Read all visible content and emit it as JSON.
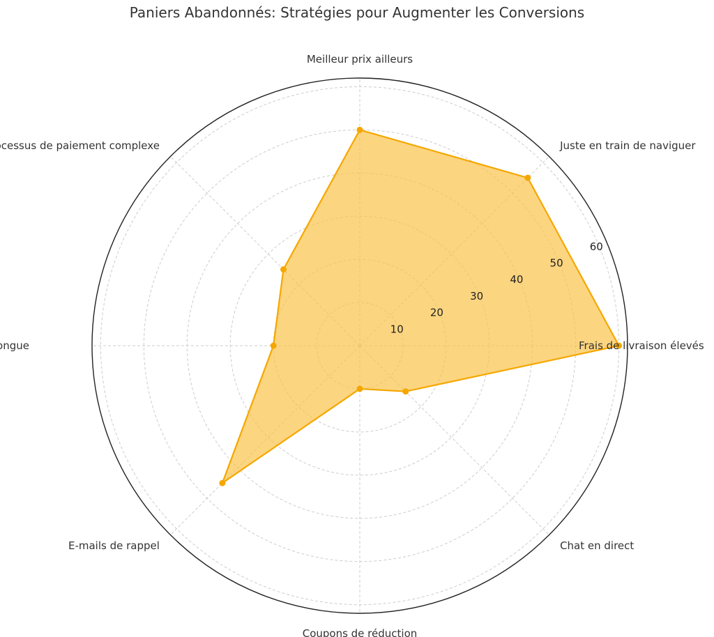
{
  "chart_data": {
    "type": "radar",
    "title": "Paniers Abandonnés: Stratégies pour Augmenter les Conversions",
    "categories": [
      "Frais de livraison élevés",
      "Juste en train de naviguer",
      "Meilleur prix ailleurs",
      "Processus de paiement complexe",
      "Durée de livraison longue",
      "E-mails de rappel",
      "Coupons de réduction",
      "Chat en direct"
    ],
    "series": [
      {
        "values": [
          60,
          55,
          50,
          25,
          20,
          45,
          10,
          15
        ]
      }
    ],
    "radial_ticks": [
      10,
      20,
      30,
      40,
      50,
      60
    ],
    "rlim": [
      0,
      62
    ],
    "grid": true,
    "colors": {
      "line": "#f5a700",
      "fill": "#fbc34a",
      "grid": "#cccccc",
      "outline": "#222222"
    }
  }
}
